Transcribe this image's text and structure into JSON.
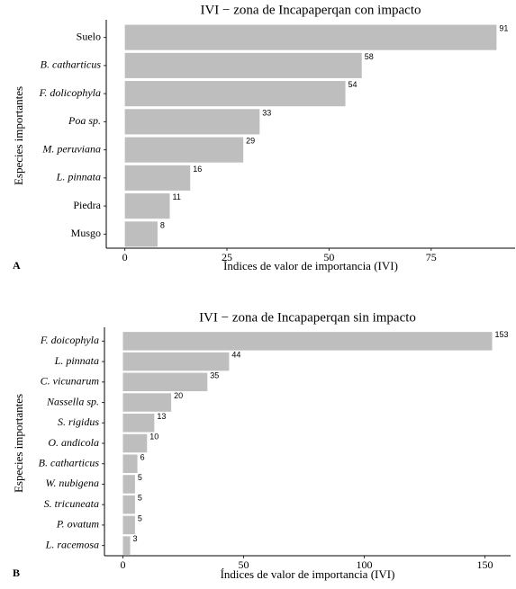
{
  "chart_data": [
    {
      "type": "barh",
      "tag": "A",
      "title": "IVI − zona de Incapaperqan con impacto",
      "x_label": "Índices de valor de importancia (IVI)",
      "y_label": "Especies importantes",
      "categories": [
        "Suelo",
        "B. catharticus",
        "F. dolicophyla",
        "Poa sp.",
        "M. peruviana",
        "L. pinnata",
        "Piedra",
        "Musgo"
      ],
      "italic": [
        false,
        true,
        true,
        true,
        true,
        true,
        false,
        false
      ],
      "values": [
        91,
        58,
        54,
        33,
        29,
        16,
        11,
        8
      ],
      "color": "#bebebe",
      "xlim": [
        -4.55,
        95.55
      ],
      "xticks": [
        0,
        25,
        50,
        75
      ]
    },
    {
      "type": "barh",
      "tag": "B",
      "title": "IVI − zona de Incapaperqan sin impacto",
      "x_label": "Índices de valor de importancia (IVI)",
      "y_label": "Especies importantes",
      "categories": [
        "F. doicophyla",
        "L. pinnata",
        "C. vicunarum",
        "Nassella sp.",
        "S. rigidus",
        "O. andicola",
        "B. catharticus",
        "W. nubigena",
        "S. tricuneata",
        "P. ovatum",
        "L. racemosa"
      ],
      "italic": [
        true,
        true,
        true,
        true,
        true,
        true,
        true,
        true,
        true,
        true,
        true
      ],
      "values": [
        153,
        44,
        35,
        20,
        13,
        10,
        6,
        5,
        5,
        5,
        3
      ],
      "color": "#bebebe",
      "xlim": [
        -7.65,
        160.65
      ],
      "xticks": [
        0,
        50,
        100,
        150
      ]
    }
  ]
}
